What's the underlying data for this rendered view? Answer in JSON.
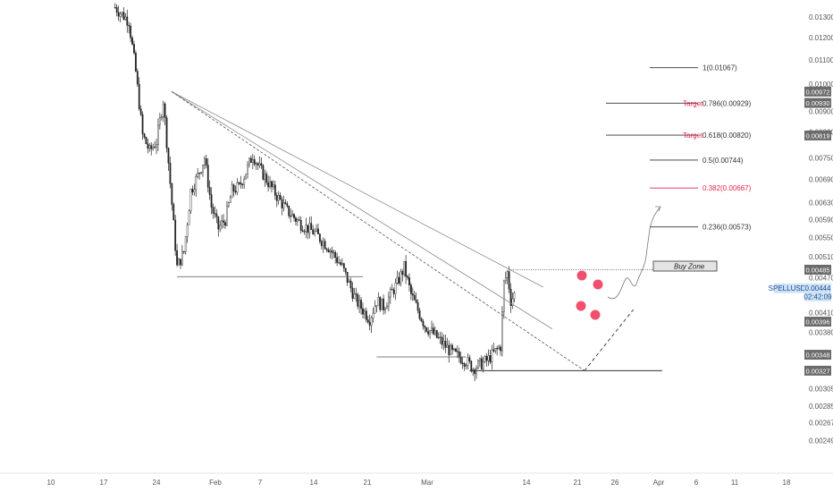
{
  "chart_data": {
    "type": "candlestick",
    "symbol": "SPELLUSDT",
    "countdown": "02:42:09",
    "last_price": 0.00444,
    "y_scale": "log",
    "ylim": [
      0.00235,
      0.0138
    ],
    "y_ticks": [
      {
        "value": 0.013,
        "label": "0.01300"
      },
      {
        "value": 0.012,
        "label": "0.01200"
      },
      {
        "value": 0.011,
        "label": "0.01100"
      },
      {
        "value": 0.01,
        "label": "0.01000"
      },
      {
        "value": 0.009,
        "label": "0.00900"
      },
      {
        "value": 0.0083,
        "label": "0.00830"
      },
      {
        "value": 0.0075,
        "label": "0.00750"
      },
      {
        "value": 0.0069,
        "label": "0.00690"
      },
      {
        "value": 0.0063,
        "label": "0.00630"
      },
      {
        "value": 0.0059,
        "label": "0.00590"
      },
      {
        "value": 0.0055,
        "label": "0.00550"
      },
      {
        "value": 0.0051,
        "label": "0.00510"
      },
      {
        "value": 0.0047,
        "label": "0.00470"
      },
      {
        "value": 0.0041,
        "label": "0.00410"
      },
      {
        "value": 0.0038,
        "label": "0.00380"
      },
      {
        "value": 0.00305,
        "label": "0.00305"
      },
      {
        "value": 0.00285,
        "label": "0.00285"
      },
      {
        "value": 0.00267,
        "label": "0.00267"
      },
      {
        "value": 0.00249,
        "label": "0.00249"
      }
    ],
    "y_tags": [
      {
        "value": 0.00972,
        "label": "0.00972"
      },
      {
        "value": 0.0093,
        "label": "0.00930"
      },
      {
        "value": 0.00819,
        "label": "0.00819"
      },
      {
        "value": 0.00485,
        "label": "0.00485"
      },
      {
        "value": 0.00396,
        "label": "0.00396"
      },
      {
        "value": 0.00348,
        "label": "0.00348"
      },
      {
        "value": 0.00327,
        "label": "0.00327"
      }
    ],
    "x_ticks": [
      {
        "day": -10,
        "label": "10"
      },
      {
        "day": -3,
        "label": "17"
      },
      {
        "day": 4,
        "label": "24"
      },
      {
        "day": 12,
        "label": "Feb"
      },
      {
        "day": 18,
        "label": "7"
      },
      {
        "day": 25,
        "label": "14"
      },
      {
        "day": 32,
        "label": "21"
      },
      {
        "day": 39,
        "label": "Mar"
      },
      {
        "day": 46,
        "label": "14"
      },
      {
        "day": 53,
        "label": "21"
      },
      {
        "day": 60,
        "label": "26"
      },
      {
        "day": 66,
        "label": "Apr"
      },
      {
        "day": 72,
        "label": "6"
      },
      {
        "day": 78,
        "label": "11"
      },
      {
        "day": 85,
        "label": "18"
      }
    ],
    "fib_levels": [
      {
        "ratio": "1",
        "price": 0.01067,
        "label": "1(0.01067)",
        "target": false
      },
      {
        "ratio": "0.786",
        "price": 0.00929,
        "label": "0.786(0.00929)",
        "target": true
      },
      {
        "ratio": "0.618",
        "price": 0.0082,
        "label": "0.618(0.00820)",
        "target": true
      },
      {
        "ratio": "0.5",
        "price": 0.00744,
        "label": "0.5(0.00744)",
        "target": false
      },
      {
        "ratio": "0.382",
        "price": 0.00667,
        "label": "0.382(0.00667)",
        "target": false
      },
      {
        "ratio": "0.236",
        "price": 0.00573,
        "label": "0.236(0.00573)",
        "target": false
      }
    ],
    "target_label": "Target",
    "buy_zone_label": "Buy Zone",
    "colors": {
      "candle": "#222222",
      "trendline": "#888888",
      "fib_target": "#e0284a",
      "marker": "#f0506e",
      "tag_bg": "#6b6b6b",
      "symbol_bg": "#cfe3f7"
    }
  }
}
